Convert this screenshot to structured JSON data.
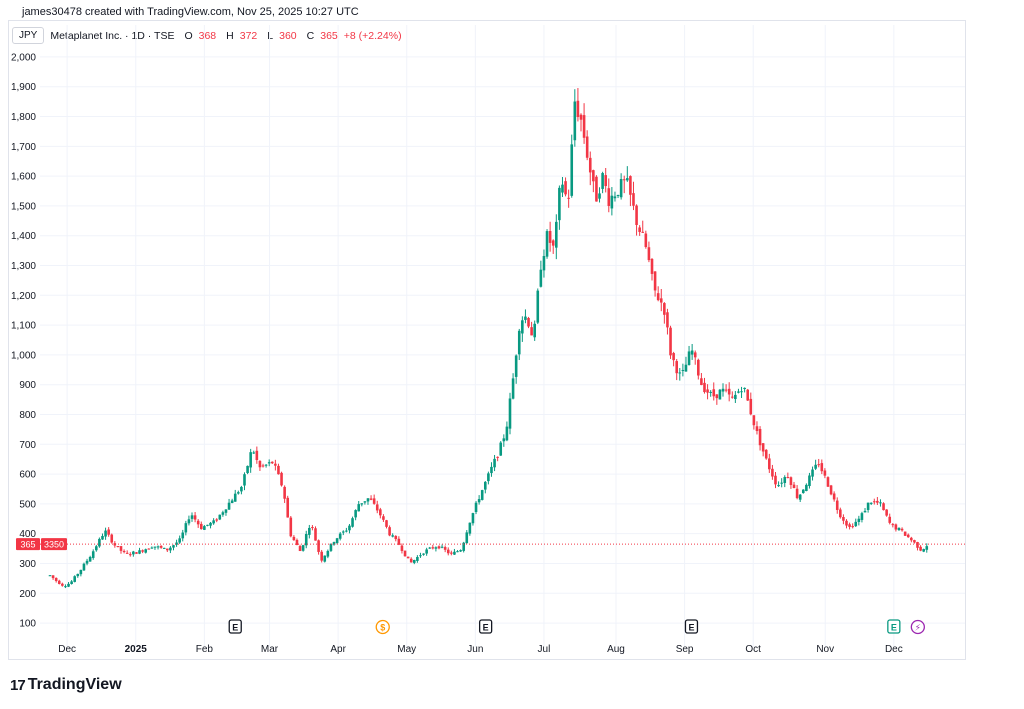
{
  "header": {
    "credit": "james30478 created with TradingView.com, Nov 25, 2025 10:27 UTC"
  },
  "legend": {
    "currency": "JPY",
    "symbol": "Metaplanet Inc. · 1D · TSE",
    "o_label": "O",
    "o_value": "368",
    "h_label": "H",
    "h_value": "372",
    "l_label": "L",
    "l_value": "360",
    "c_label": "C",
    "c_value": "365",
    "change": "+8 (+2.24%)"
  },
  "price_tag": {
    "price": "365",
    "label": "3350"
  },
  "footer": {
    "brand": "TradingView",
    "logo_mark": "17"
  },
  "colors": {
    "up": "#089981",
    "down": "#f23645",
    "grid": "#f0f3fa",
    "axis_text": "#131722",
    "price_line": "#f23645"
  },
  "events": [
    {
      "icon": "E",
      "kind": "earnings",
      "month_pos": 2.7,
      "color": "#131722"
    },
    {
      "icon": "$",
      "kind": "dividend",
      "month_pos": 4.85,
      "color": "#ff9800"
    },
    {
      "icon": "E",
      "kind": "earnings",
      "month_pos": 6.35,
      "color": "#131722"
    },
    {
      "icon": "E",
      "kind": "earnings",
      "month_pos": 9.35,
      "color": "#131722"
    },
    {
      "icon": "E",
      "kind": "earnings-upcoming",
      "month_pos": 12.3,
      "color": "#089981"
    },
    {
      "icon": "⚡",
      "kind": "split",
      "month_pos": 12.65,
      "color": "#9c27b0"
    }
  ],
  "chart_data": {
    "type": "candlestick",
    "title": "Metaplanet Inc. · 1D · TSE",
    "currency": "JPY",
    "ylim": [
      60,
      2040
    ],
    "y_ticks": [
      2000,
      1900,
      1800,
      1700,
      1600,
      1500,
      1400,
      1300,
      1200,
      1100,
      1000,
      900,
      800,
      700,
      600,
      500,
      400,
      300,
      200,
      100
    ],
    "y_tick_labels": [
      "2,000",
      "1,900",
      "1,800",
      "1,700",
      "1,600",
      "1,500",
      "1,400",
      "1,300",
      "1,200",
      "1,100",
      "1,000",
      "900",
      "800",
      "700",
      "600",
      "500",
      "400",
      "300",
      "200",
      "100"
    ],
    "x_ticks": [
      {
        "label": "Dec",
        "pos": 0.25,
        "bold": false
      },
      {
        "label": "2025",
        "pos": 1.25,
        "bold": true
      },
      {
        "label": "Feb",
        "pos": 2.25,
        "bold": false
      },
      {
        "label": "Mar",
        "pos": 3.2,
        "bold": false
      },
      {
        "label": "Apr",
        "pos": 4.2,
        "bold": false
      },
      {
        "label": "May",
        "pos": 5.2,
        "bold": false
      },
      {
        "label": "Jun",
        "pos": 6.2,
        "bold": false
      },
      {
        "label": "Jul",
        "pos": 7.2,
        "bold": false
      },
      {
        "label": "Aug",
        "pos": 8.25,
        "bold": false
      },
      {
        "label": "Sep",
        "pos": 9.25,
        "bold": false
      },
      {
        "label": "Oct",
        "pos": 10.25,
        "bold": false
      },
      {
        "label": "Nov",
        "pos": 11.3,
        "bold": false
      },
      {
        "label": "Dec",
        "pos": 12.3,
        "bold": false
      }
    ],
    "x_range_months": [
      0,
      12.9
    ],
    "last_price": 365,
    "price_path": [
      [
        0.0,
        260
      ],
      [
        0.1,
        240
      ],
      [
        0.2,
        225
      ],
      [
        0.3,
        235
      ],
      [
        0.45,
        280
      ],
      [
        0.6,
        330
      ],
      [
        0.8,
        410
      ],
      [
        0.95,
        360
      ],
      [
        1.1,
        330
      ],
      [
        1.3,
        340
      ],
      [
        1.5,
        360
      ],
      [
        1.7,
        345
      ],
      [
        1.9,
        380
      ],
      [
        2.05,
        470
      ],
      [
        2.2,
        420
      ],
      [
        2.4,
        440
      ],
      [
        2.6,
        500
      ],
      [
        2.8,
        560
      ],
      [
        2.95,
        690
      ],
      [
        3.05,
        620
      ],
      [
        3.25,
        640
      ],
      [
        3.4,
        550
      ],
      [
        3.5,
        400
      ],
      [
        3.65,
        340
      ],
      [
        3.8,
        440
      ],
      [
        3.95,
        310
      ],
      [
        4.15,
        380
      ],
      [
        4.35,
        420
      ],
      [
        4.5,
        500
      ],
      [
        4.65,
        520
      ],
      [
        4.8,
        470
      ],
      [
        4.95,
        400
      ],
      [
        5.1,
        360
      ],
      [
        5.25,
        300
      ],
      [
        5.45,
        340
      ],
      [
        5.65,
        360
      ],
      [
        5.85,
        330
      ],
      [
        6.0,
        350
      ],
      [
        6.1,
        430
      ],
      [
        6.25,
        520
      ],
      [
        6.4,
        600
      ],
      [
        6.55,
        680
      ],
      [
        6.65,
        750
      ],
      [
        6.75,
        920
      ],
      [
        6.85,
        1120
      ],
      [
        6.95,
        1130
      ],
      [
        7.05,
        1050
      ],
      [
        7.15,
        1300
      ],
      [
        7.25,
        1400
      ],
      [
        7.35,
        1350
      ],
      [
        7.45,
        1600
      ],
      [
        7.55,
        1500
      ],
      [
        7.65,
        1850
      ],
      [
        7.75,
        1780
      ],
      [
        7.85,
        1650
      ],
      [
        7.95,
        1520
      ],
      [
        8.05,
        1600
      ],
      [
        8.15,
        1520
      ],
      [
        8.25,
        1550
      ],
      [
        8.4,
        1580
      ],
      [
        8.55,
        1450
      ],
      [
        8.7,
        1350
      ],
      [
        8.8,
        1220
      ],
      [
        8.95,
        1160
      ],
      [
        9.05,
        1000
      ],
      [
        9.2,
        920
      ],
      [
        9.35,
        1020
      ],
      [
        9.5,
        900
      ],
      [
        9.65,
        860
      ],
      [
        9.8,
        880
      ],
      [
        9.95,
        850
      ],
      [
        10.1,
        900
      ],
      [
        10.2,
        820
      ],
      [
        10.3,
        740
      ],
      [
        10.45,
        640
      ],
      [
        10.6,
        560
      ],
      [
        10.75,
        600
      ],
      [
        10.9,
        520
      ],
      [
        11.05,
        580
      ],
      [
        11.2,
        640
      ],
      [
        11.35,
        560
      ],
      [
        11.5,
        470
      ],
      [
        11.65,
        420
      ],
      [
        11.8,
        450
      ],
      [
        11.95,
        510
      ],
      [
        12.1,
        500
      ],
      [
        12.25,
        430
      ],
      [
        12.4,
        410
      ],
      [
        12.55,
        380
      ],
      [
        12.7,
        345
      ],
      [
        12.8,
        365
      ]
    ]
  }
}
